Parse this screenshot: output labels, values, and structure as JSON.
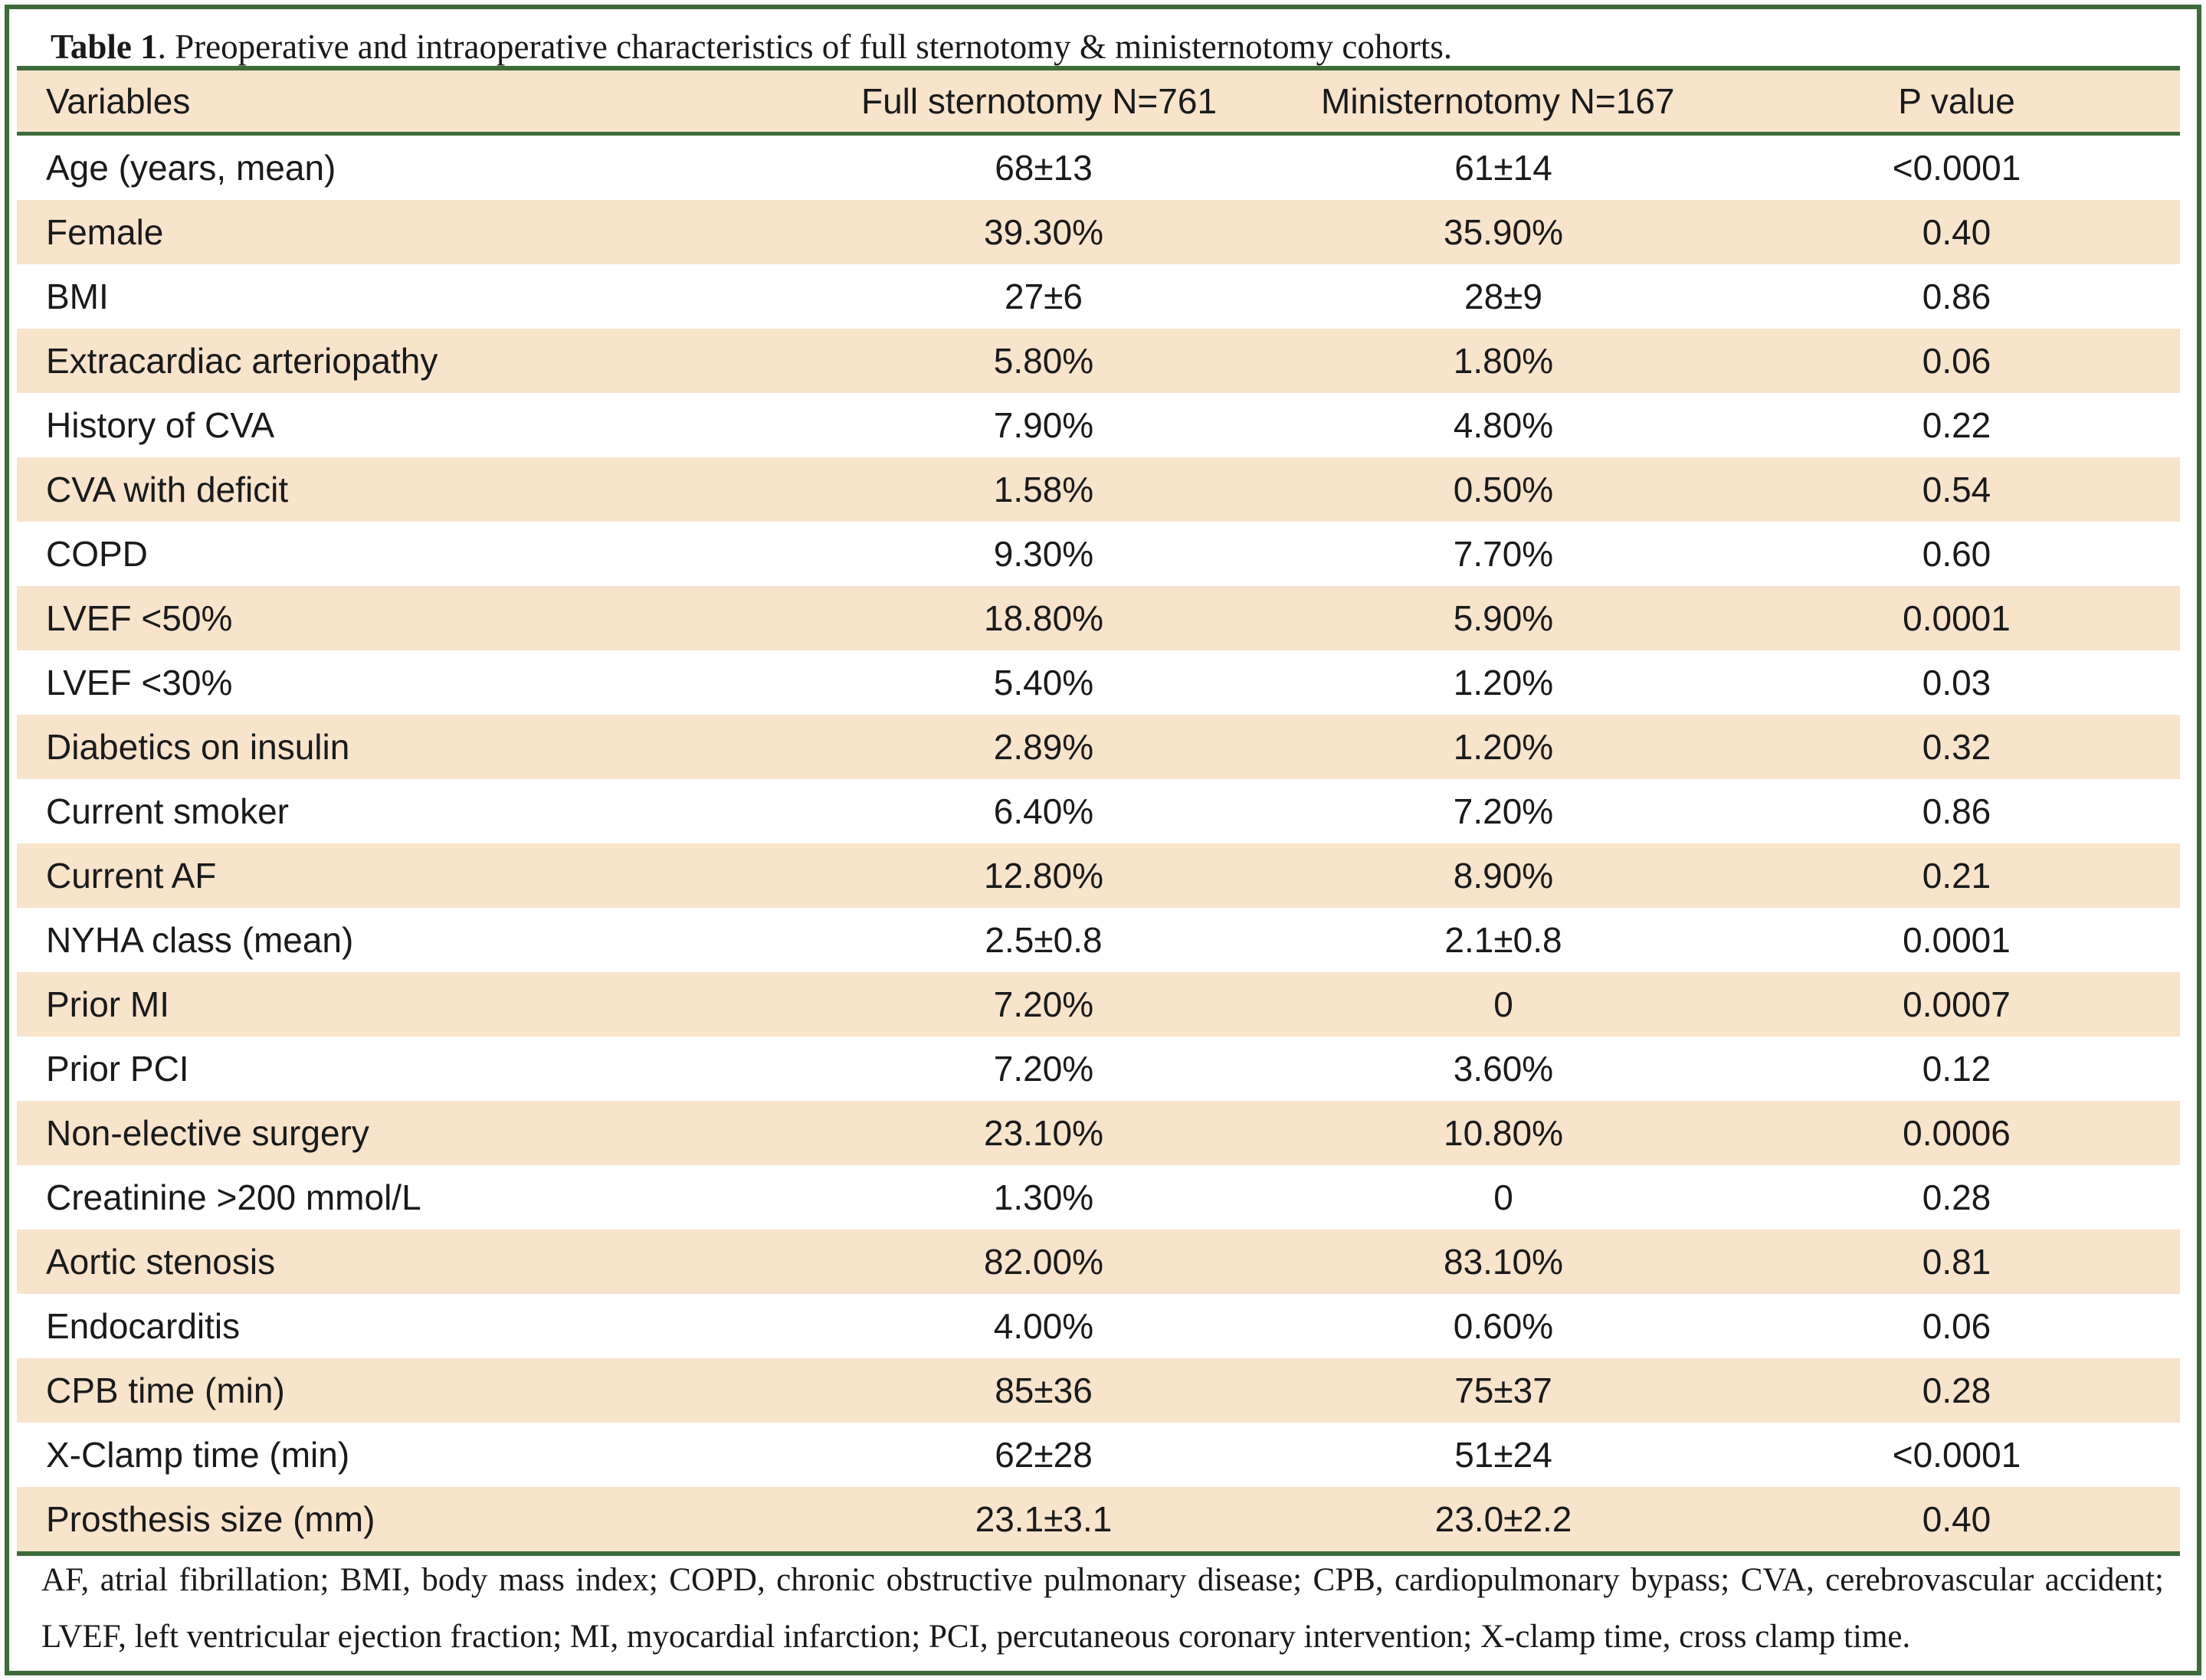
{
  "caption": {
    "label": "Table 1",
    "text": ". Preoperative and intraoperative characteristics of full sternotomy & ministernotomy cohorts."
  },
  "headers": {
    "variable": "Variables",
    "full": "Full sternotomy N=761",
    "mini": "Ministernotomy N=167",
    "p": "P value"
  },
  "rows": [
    {
      "variable": "Age (years, mean)",
      "full": "68±13",
      "mini": "61±14",
      "p": "<0.0001"
    },
    {
      "variable": "Female",
      "full": "39.30%",
      "mini": "35.90%",
      "p": "0.40"
    },
    {
      "variable": "BMI",
      "full": "27±6",
      "mini": "28±9",
      "p": "0.86"
    },
    {
      "variable": "Extracardiac arteriopathy",
      "full": "5.80%",
      "mini": "1.80%",
      "p": "0.06"
    },
    {
      "variable": "History of CVA",
      "full": "7.90%",
      "mini": "4.80%",
      "p": "0.22"
    },
    {
      "variable": "CVA with deficit",
      "full": "1.58%",
      "mini": "0.50%",
      "p": "0.54"
    },
    {
      "variable": "COPD",
      "full": "9.30%",
      "mini": "7.70%",
      "p": "0.60"
    },
    {
      "variable": "LVEF <50%",
      "full": "18.80%",
      "mini": "5.90%",
      "p": "0.0001"
    },
    {
      "variable": "LVEF <30%",
      "full": "5.40%",
      "mini": "1.20%",
      "p": "0.03"
    },
    {
      "variable": "Diabetics on insulin",
      "full": "2.89%",
      "mini": "1.20%",
      "p": "0.32"
    },
    {
      "variable": "Current smoker",
      "full": "6.40%",
      "mini": "7.20%",
      "p": "0.86"
    },
    {
      "variable": "Current AF",
      "full": "12.80%",
      "mini": "8.90%",
      "p": "0.21"
    },
    {
      "variable": "NYHA class (mean)",
      "full": "2.5±0.8",
      "mini": "2.1±0.8",
      "p": "0.0001"
    },
    {
      "variable": "Prior MI",
      "full": "7.20%",
      "mini": "0",
      "p": "0.0007"
    },
    {
      "variable": "Prior PCI",
      "full": "7.20%",
      "mini": "3.60%",
      "p": "0.12"
    },
    {
      "variable": "Non-elective surgery",
      "full": "23.10%",
      "mini": "10.80%",
      "p": "0.0006"
    },
    {
      "variable": "Creatinine >200 mmol/L",
      "full": "1.30%",
      "mini": "0",
      "p": "0.28"
    },
    {
      "variable": "Aortic stenosis",
      "full": "82.00%",
      "mini": "83.10%",
      "p": "0.81"
    },
    {
      "variable": "Endocarditis",
      "full": "4.00%",
      "mini": "0.60%",
      "p": "0.06"
    },
    {
      "variable": "CPB time (min)",
      "full": "85±36",
      "mini": "75±37",
      "p": "0.28"
    },
    {
      "variable": "X-Clamp time (min)",
      "full": "62±28",
      "mini": "51±24",
      "p": "<0.0001"
    },
    {
      "variable": "Prosthesis size (mm)",
      "full": "23.1±3.1",
      "mini": "23.0±2.2",
      "p": "0.40"
    }
  ],
  "footnote": "AF, atrial fibrillation; BMI, body mass index; COPD, chronic obstructive pulmonary disease; CPB, cardiopulmonary bypass; CVA, cerebrovascular accident; LVEF, left ventricular ejection fraction; MI, myocardial infarction; PCI, percutaneous coronary intervention; X-clamp time, cross clamp time.",
  "colors": {
    "border": "#3d6b3a",
    "shade": "#f8e3cb"
  }
}
